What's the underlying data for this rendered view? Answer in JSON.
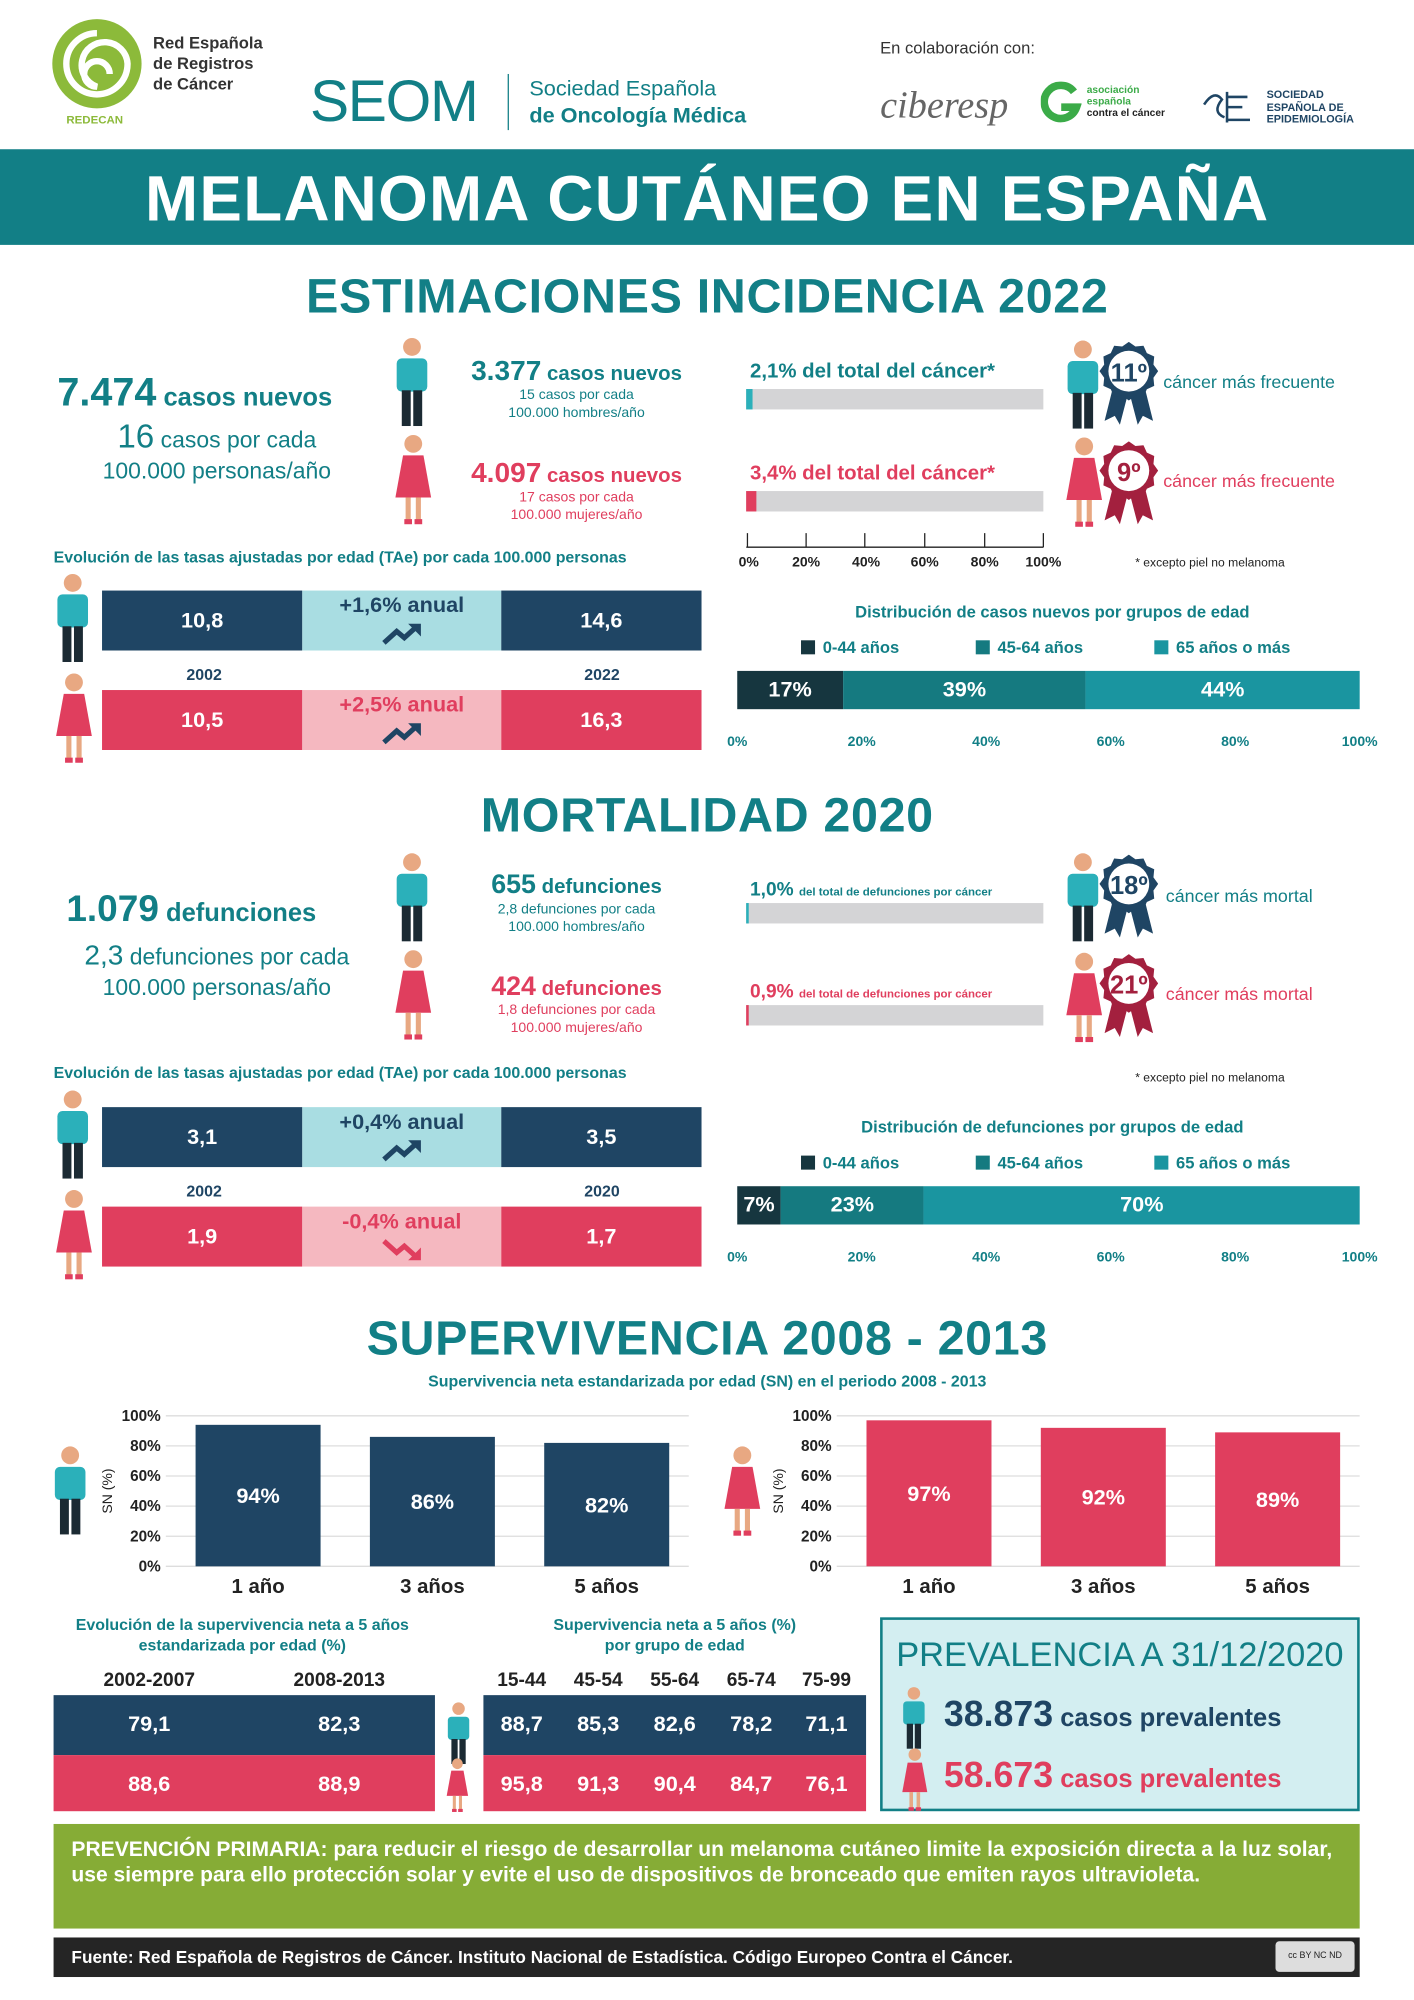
{
  "header": {
    "redecan": {
      "lines": [
        "Red Española",
        "de Registros",
        "de Cáncer"
      ],
      "acronym": "REDECAN"
    },
    "seom": {
      "acronym": "SEOM",
      "line1": "Sociedad Española",
      "line2": "de Oncología Médica"
    },
    "collab_label": "En colaboración con:",
    "ciberesp": "ciberesp",
    "aecc": {
      "lines": [
        "asociación",
        "española",
        "contra el cáncer"
      ]
    },
    "see": {
      "lines": [
        "SOCIEDAD",
        "ESPAÑOLA DE",
        "EPIDEMIOLOGÍA"
      ]
    }
  },
  "title": "MELANOMA CUTÁNEO EN ESPAÑA",
  "colors": {
    "teal": "#127f86",
    "navy": "#1f4564",
    "pink": "#e03e5e",
    "light_teal": "#a9dde2",
    "light_pink": "#f5b8c0",
    "green": "#86ac36",
    "age1": "#16363f",
    "age2": "#157a80",
    "age3": "#1a95a0"
  },
  "incidence": {
    "title": "ESTIMACIONES INCIDENCIA 2022",
    "total": {
      "number": "7.474",
      "label": "casos nuevos",
      "rate_num": "16",
      "rate_line1": "casos por cada",
      "rate_line2": "100.000 personas/año"
    },
    "men": {
      "number": "3.377",
      "label": "casos nuevos",
      "line1": "15 casos por cada",
      "line2": "100.000 hombres/año",
      "pct_label": "2,1% del total del cáncer*",
      "pct": 2.1,
      "rank": "11º",
      "rank_label": "cáncer más frecuente"
    },
    "women": {
      "number": "4.097",
      "label": "casos nuevos",
      "line1": "17 casos por cada",
      "line2": "100.000 mujeres/año",
      "pct_label": "3,4% del total del cáncer*",
      "pct": 3.4,
      "rank": "9º",
      "rank_label": "cáncer más frecuente"
    },
    "pct_axis": [
      "0%",
      "20%",
      "40%",
      "60%",
      "80%",
      "100%"
    ],
    "footnote": "* excepto piel no melanoma",
    "trend_title": "Evolución de las tasas ajustadas por edad (TAe) por cada 100.000 personas",
    "trend": {
      "year_start": "2002",
      "year_end": "2022",
      "men": {
        "start": "10,8",
        "change": "+1,6% anual",
        "end": "14,6",
        "direction": "up"
      },
      "women": {
        "start": "10,5",
        "change": "+2,5% anual",
        "end": "16,3",
        "direction": "up"
      }
    },
    "age_title": "Distribución de casos nuevos por grupos de edad"
  },
  "mortality": {
    "title": "MORTALIDAD 2020",
    "total": {
      "number": "1.079",
      "label": "defunciones",
      "rate_num": "2,3",
      "rate_line1": "defunciones por cada",
      "rate_line2": "100.000 personas/año"
    },
    "men": {
      "number": "655",
      "label": "defunciones",
      "line1": "2,8 defunciones por cada",
      "line2": "100.000 hombres/año",
      "pct_big": "1,0%",
      "pct_small": "del total de defunciones por cáncer",
      "pct": 1.0,
      "rank": "18º",
      "rank_label": "cáncer más mortal"
    },
    "women": {
      "number": "424",
      "label": "defunciones",
      "line1": "1,8 defunciones por cada",
      "line2": "100.000 mujeres/año",
      "pct_big": "0,9%",
      "pct_small": "del total de defunciones por cáncer",
      "pct": 0.9,
      "rank": "21º",
      "rank_label": "cáncer más mortal"
    },
    "footnote": "* excepto piel no melanoma",
    "trend_title": "Evolución de las tasas ajustadas por edad (TAe) por cada 100.000 personas",
    "trend": {
      "year_start": "2002",
      "year_end": "2020",
      "men": {
        "start": "3,1",
        "change": "+0,4% anual",
        "end": "3,5",
        "direction": "up"
      },
      "women": {
        "start": "1,9",
        "change": "-0,4% anual",
        "end": "1,7",
        "direction": "down"
      }
    },
    "age_title": "Distribución de defunciones por grupos de edad"
  },
  "survival": {
    "title": "SUPERVIVENCIA 2008 - 2013",
    "subtitle": "Supervivencia neta estandarizada por edad (SN) en el periodo 2008 - 2013",
    "evo_title_1": "Evolución de la supervivencia neta a 5 años",
    "evo_title_2": "estandarizada por edad (%)",
    "evo_headers": [
      "2002-2007",
      "2008-2013"
    ],
    "evo_men": [
      "79,1",
      "82,3"
    ],
    "evo_women": [
      "88,6",
      "88,9"
    ],
    "age_title_1": "Supervivencia neta a 5 años (%)",
    "age_title_2": "por grupo de edad",
    "age_headers": [
      "15-44",
      "45-54",
      "55-64",
      "65-74",
      "75-99"
    ],
    "age_men": [
      "88,7",
      "85,3",
      "82,6",
      "78,2",
      "71,1"
    ],
    "age_women": [
      "95,8",
      "91,3",
      "90,4",
      "84,7",
      "76,1"
    ]
  },
  "prevalence": {
    "title": "PREVALENCIA A 31/12/2020",
    "men": {
      "number": "38.873",
      "label": "casos prevalentes"
    },
    "women": {
      "number": "58.673",
      "label": "casos prevalentes"
    }
  },
  "prevention": {
    "lead": "PREVENCIÓN PRIMARIA:",
    "text": " para reducir el riesgo de desarrollar un melanoma cutáneo limite la exposición directa a la luz solar, use siempre para ello protección solar y evite el uso de dispositivos de bronceado que emiten rayos ultravioleta."
  },
  "footer": {
    "source": "Fuente: Red Española de Registros de Cáncer. Instituto Nacional de Estadística. Código Europeo Contra el Cáncer.",
    "license": "cc BY NC ND"
  },
  "chart_data": [
    {
      "type": "bar",
      "title": "Distribución de casos nuevos por grupos de edad",
      "stacked": true,
      "orientation": "horizontal",
      "series": [
        {
          "name": "0-44 años",
          "values": [
            17
          ]
        },
        {
          "name": "45-64 años",
          "values": [
            39
          ]
        },
        {
          "name": "65 años o más",
          "values": [
            44
          ]
        }
      ],
      "data_labels": [
        "17%",
        "39%",
        "44%"
      ],
      "xlim": [
        0,
        100
      ],
      "x_ticks": [
        "0%",
        "20%",
        "40%",
        "60%",
        "80%",
        "100%"
      ],
      "legend": "top"
    },
    {
      "type": "bar",
      "title": "Distribución de defunciones por grupos de edad",
      "stacked": true,
      "orientation": "horizontal",
      "series": [
        {
          "name": "0-44 años",
          "values": [
            7
          ]
        },
        {
          "name": "45-64 años",
          "values": [
            23
          ]
        },
        {
          "name": "65 años o más",
          "values": [
            70
          ]
        }
      ],
      "data_labels": [
        "7%",
        "23%",
        "70%"
      ],
      "xlim": [
        0,
        100
      ],
      "x_ticks": [
        "0%",
        "20%",
        "40%",
        "60%",
        "80%",
        "100%"
      ],
      "legend": "top"
    },
    {
      "type": "bar",
      "ylabel": "SN (%)",
      "categories": [
        "1 año",
        "3 años",
        "5 años"
      ],
      "values": [
        94,
        86,
        82
      ],
      "data_labels": [
        "94%",
        "86%",
        "82%"
      ],
      "ylim": [
        0,
        100
      ],
      "y_ticks": [
        "0%",
        "20%",
        "40%",
        "60%",
        "80%",
        "100%"
      ],
      "grid": true,
      "color": "#1f4564"
    },
    {
      "type": "bar",
      "ylabel": "SN (%)",
      "categories": [
        "1 año",
        "3 años",
        "5 años"
      ],
      "values": [
        97,
        92,
        89
      ],
      "data_labels": [
        "97%",
        "92%",
        "89%"
      ],
      "ylim": [
        0,
        100
      ],
      "y_ticks": [
        "0%",
        "20%",
        "40%",
        "60%",
        "80%",
        "100%"
      ],
      "grid": true,
      "color": "#e03e5e"
    }
  ]
}
